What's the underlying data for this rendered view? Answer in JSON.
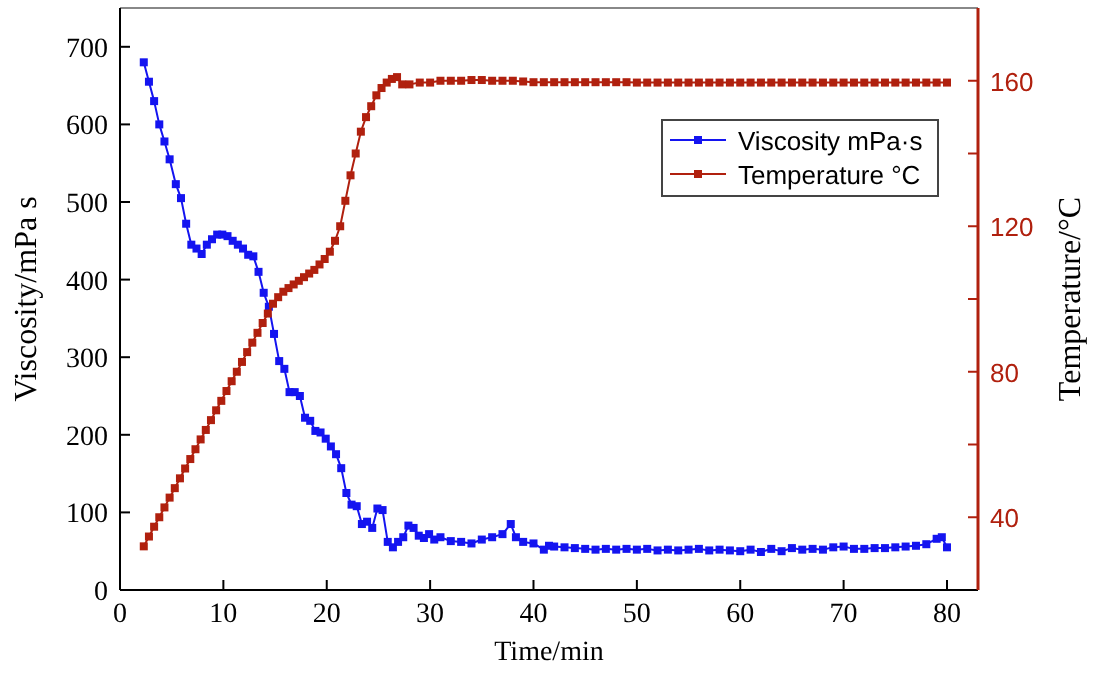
{
  "chart_data": {
    "type": "line",
    "xlabel": "Time/min",
    "ylabel": "Viscosity/mPa s",
    "y2label": "Temperature/°C",
    "xlim": [
      0,
      83
    ],
    "xticks": [
      0,
      10,
      20,
      30,
      40,
      50,
      60,
      70,
      80
    ],
    "ylim": [
      0,
      750
    ],
    "yticks": [
      0,
      100,
      200,
      300,
      400,
      500,
      600,
      700
    ],
    "y2lim": [
      20,
      180
    ],
    "y2ticks": [
      {
        "value": 40,
        "label": "40"
      },
      {
        "value": 60,
        "label": null
      },
      {
        "value": 80,
        "label": "80"
      },
      {
        "value": 100,
        "label": null
      },
      {
        "value": 120,
        "label": "120"
      },
      {
        "value": 140,
        "label": null
      },
      {
        "value": 160,
        "label": "160"
      }
    ],
    "legend": "top right",
    "marker": "square",
    "line_style": "solid",
    "grid": false,
    "series": [
      {
        "name": "Viscosity  mPa·s",
        "color": "#1414f0",
        "x": [
          2.3,
          2.8,
          3.3,
          3.8,
          4.3,
          4.8,
          5.4,
          5.9,
          6.4,
          6.9,
          7.4,
          7.9,
          8.4,
          8.9,
          9.4,
          9.9,
          10.4,
          10.9,
          11.4,
          11.9,
          12.4,
          12.9,
          13.4,
          13.9,
          14.4,
          14.9,
          15.4,
          15.9,
          16.4,
          16.9,
          17.4,
          17.9,
          18.4,
          18.9,
          19.4,
          19.9,
          20.4,
          20.9,
          21.4,
          21.9,
          22.4,
          22.9,
          23.4,
          23.9,
          24.4,
          24.9,
          25.4,
          25.9,
          26.4,
          26.9,
          27.4,
          27.9,
          28.4,
          28.9,
          29.4,
          29.9,
          30.4,
          31,
          32,
          33,
          34,
          35,
          36,
          37,
          37.8,
          38.3,
          39,
          40,
          41,
          41.5,
          42,
          43,
          44,
          45,
          46,
          47,
          48,
          49,
          50,
          51,
          52,
          53,
          54,
          55,
          56,
          57,
          58,
          59,
          60,
          61,
          62,
          63,
          64,
          65,
          66,
          67,
          68,
          69,
          70,
          71,
          72,
          73,
          74,
          75,
          76,
          77,
          78,
          79,
          79.5,
          80
        ],
        "values": [
          680,
          655,
          630,
          600,
          578,
          555,
          523,
          505,
          472,
          445,
          440,
          433,
          445,
          452,
          458,
          458,
          456,
          450,
          445,
          440,
          432,
          430,
          410,
          383,
          365,
          330,
          295,
          285,
          255,
          255,
          250,
          222,
          218,
          205,
          203,
          195,
          185,
          175,
          157,
          125,
          110,
          108,
          85,
          88,
          80,
          105,
          103,
          62,
          55,
          62,
          68,
          83,
          80,
          70,
          67,
          72,
          65,
          68,
          63,
          62,
          60,
          65,
          68,
          72,
          85,
          68,
          62,
          60,
          52,
          57,
          56,
          55,
          54,
          53,
          52,
          53,
          52,
          53,
          52,
          53,
          51,
          52,
          51,
          52,
          53,
          51,
          52,
          51,
          50,
          52,
          49,
          53,
          50,
          54,
          52,
          53,
          52,
          55,
          56,
          53,
          53,
          54,
          54,
          55,
          56,
          57,
          59,
          66,
          68,
          55
        ]
      },
      {
        "name": "Temperature  °C",
        "color": "#b0200e",
        "axis": "y2",
        "x": [
          2.3,
          2.8,
          3.3,
          3.8,
          4.3,
          4.8,
          5.3,
          5.8,
          6.3,
          6.8,
          7.3,
          7.8,
          8.3,
          8.8,
          9.3,
          9.8,
          10.3,
          10.8,
          11.3,
          11.8,
          12.3,
          12.8,
          13.3,
          13.8,
          14.3,
          14.8,
          15.3,
          15.8,
          16.3,
          16.8,
          17.3,
          17.8,
          18.3,
          18.8,
          19.3,
          19.8,
          20.3,
          20.8,
          21.3,
          21.8,
          22.3,
          22.8,
          23.3,
          23.8,
          24.3,
          24.8,
          25.3,
          25.8,
          26.3,
          26.8,
          27.3,
          28,
          29,
          30,
          31,
          32,
          33,
          34,
          35,
          36,
          37,
          38,
          39,
          40,
          41,
          42,
          43,
          44,
          45,
          46,
          47,
          48,
          49,
          50,
          51,
          52,
          53,
          54,
          55,
          56,
          57,
          58,
          59,
          60,
          61,
          62,
          63,
          64,
          65,
          66,
          67,
          68,
          69,
          70,
          71,
          72,
          73,
          74,
          75,
          76,
          77,
          78,
          79,
          80
        ],
        "values": [
          32,
          34.7,
          37.4,
          40,
          42.7,
          45.4,
          48,
          50.7,
          53.4,
          56,
          58.7,
          61.4,
          64,
          66.7,
          69.4,
          72,
          74.7,
          77.4,
          80,
          82.7,
          85.4,
          88,
          90.7,
          93.4,
          96,
          98.7,
          100.5,
          102,
          103,
          104,
          105,
          106,
          107,
          108,
          109.5,
          111,
          113,
          116,
          120,
          127,
          134,
          140,
          146,
          150,
          153,
          156,
          158,
          159.5,
          160.5,
          161,
          159,
          159,
          159.5,
          159.5,
          160,
          160,
          160,
          160.2,
          160.2,
          160,
          160,
          160,
          159.8,
          159.6,
          159.6,
          159.6,
          159.6,
          159.6,
          159.6,
          159.6,
          159.6,
          159.6,
          159.6,
          159.5,
          159.5,
          159.5,
          159.5,
          159.5,
          159.5,
          159.5,
          159.5,
          159.5,
          159.5,
          159.5,
          159.5,
          159.5,
          159.5,
          159.5,
          159.5,
          159.5,
          159.5,
          159.5,
          159.5,
          159.5,
          159.5,
          159.5,
          159.5,
          159.5,
          159.5,
          159.5,
          159.5,
          159.5,
          159.5,
          159.5
        ]
      }
    ]
  }
}
